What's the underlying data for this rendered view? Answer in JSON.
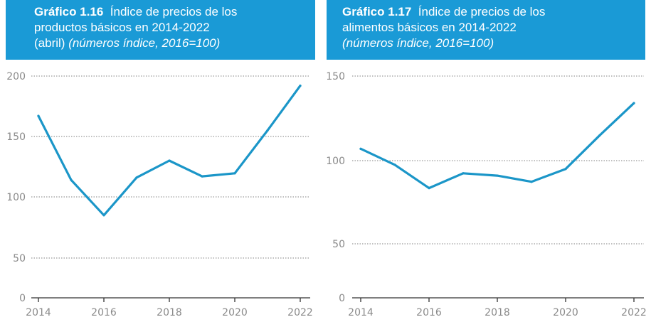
{
  "colors": {
    "header_bg": "#1a9ad6",
    "line": "#1b96c8",
    "grid": "#9a9a9a",
    "axis": "#333333",
    "tick_text": "#8a8a8a"
  },
  "chart_data": [
    {
      "type": "line",
      "number": "Gráfico 1.16",
      "title_line1": "Índice de precios de los",
      "title_line2": "productos básicos en 2014-2022",
      "title_line3_plain": "(abril)",
      "title_line3_italic": "(números índice, 2016=100)",
      "x": [
        2014,
        2015,
        2016,
        2017,
        2018,
        2019,
        2020,
        2021,
        2022
      ],
      "series": [
        {
          "name": "Índice de precios de los productos básicos",
          "values": [
            167,
            114,
            85,
            116,
            130,
            117,
            119.5,
            155,
            192
          ]
        }
      ],
      "y_ticks": [
        "200",
        "150",
        "100",
        "50",
        "0"
      ],
      "x_ticks": [
        "2014",
        "2016",
        "2018",
        "2020",
        "2022"
      ],
      "ylim": [
        0,
        200
      ],
      "grid": true,
      "xlabel": "",
      "ylabel": ""
    },
    {
      "type": "line",
      "number": "Gráfico 1.17",
      "title_line1": "Índice de precios de los",
      "title_line2": "alimentos básicos en 2014-2022",
      "title_line3_italic": "(números índice, 2016=100)",
      "x": [
        2014,
        2015,
        2016,
        2017,
        2018,
        2019,
        2020,
        2021,
        2022
      ],
      "series": [
        {
          "name": "Índice de precios de los alimentos básicos",
          "values": [
            107,
            97.5,
            83.5,
            92.4,
            91,
            87.3,
            95,
            115,
            134
          ]
        }
      ],
      "y_ticks": [
        "150",
        "100",
        "50",
        "0"
      ],
      "x_ticks": [
        "2014",
        "2016",
        "2018",
        "2020",
        "2022"
      ],
      "ylim": [
        0,
        150
      ],
      "grid": true,
      "xlabel": "",
      "ylabel": ""
    }
  ]
}
